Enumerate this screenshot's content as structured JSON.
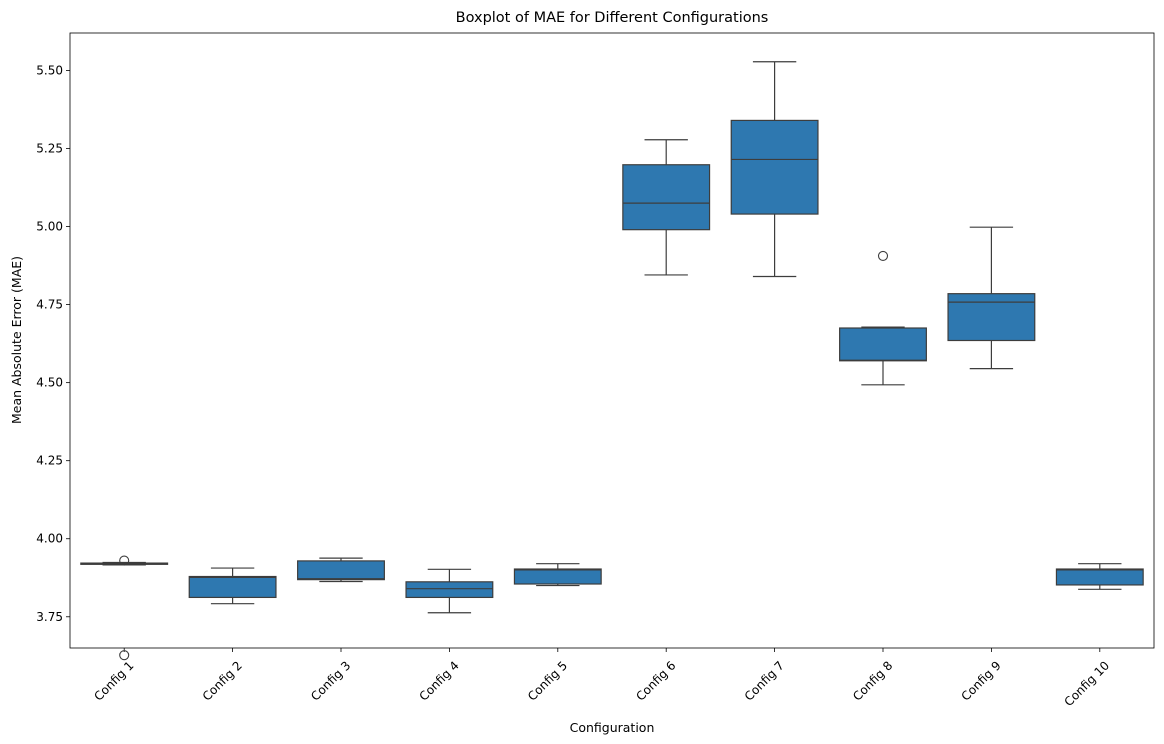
{
  "chart_data": {
    "type": "boxplot",
    "title": "Boxplot of MAE for Different Configurations",
    "xlabel": "Configuration",
    "ylabel": "Mean Absolute Error (MAE)",
    "ylim": [
      3.65,
      5.62
    ],
    "yticks": [
      "3.75",
      "4.00",
      "4.25",
      "4.50",
      "4.75",
      "5.00",
      "5.25",
      "5.50"
    ],
    "grid": false,
    "colors": {
      "box_fill": "#2e78b0",
      "line": "#3d3d3d",
      "text": "#000000"
    },
    "categories": [
      "Config 1",
      "Config 2",
      "Config 3",
      "Config 4",
      "Config 5",
      "Config 6",
      "Config 7",
      "Config 8",
      "Config 9",
      "Config 10"
    ],
    "boxes": [
      {
        "whisker_low": 3.916,
        "q1": 3.918,
        "median": 3.92,
        "q3": 3.922,
        "whisker_high": 3.924,
        "outliers": [
          3.93,
          3.627
        ]
      },
      {
        "whisker_low": 3.792,
        "q1": 3.812,
        "median": 3.876,
        "q3": 3.879,
        "whisker_high": 3.906,
        "outliers": []
      },
      {
        "whisker_low": 3.863,
        "q1": 3.869,
        "median": 3.872,
        "q3": 3.929,
        "whisker_high": 3.938,
        "outliers": []
      },
      {
        "whisker_low": 3.763,
        "q1": 3.812,
        "median": 3.84,
        "q3": 3.862,
        "whisker_high": 3.902,
        "outliers": []
      },
      {
        "whisker_low": 3.85,
        "q1": 3.855,
        "median": 3.9,
        "q3": 3.903,
        "whisker_high": 3.92,
        "outliers": []
      },
      {
        "whisker_low": 4.845,
        "q1": 4.99,
        "median": 5.075,
        "q3": 5.198,
        "whisker_high": 5.278,
        "outliers": []
      },
      {
        "whisker_low": 4.84,
        "q1": 5.04,
        "median": 5.215,
        "q3": 5.34,
        "whisker_high": 5.528,
        "outliers": []
      },
      {
        "whisker_low": 4.493,
        "q1": 4.57,
        "median": 4.572,
        "q3": 4.675,
        "whisker_high": 4.678,
        "outliers": [
          4.906
        ]
      },
      {
        "whisker_low": 4.545,
        "q1": 4.635,
        "median": 4.758,
        "q3": 4.785,
        "whisker_high": 4.998,
        "outliers": []
      },
      {
        "whisker_low": 3.838,
        "q1": 3.852,
        "median": 3.9,
        "q3": 3.903,
        "whisker_high": 3.92,
        "outliers": []
      }
    ]
  }
}
